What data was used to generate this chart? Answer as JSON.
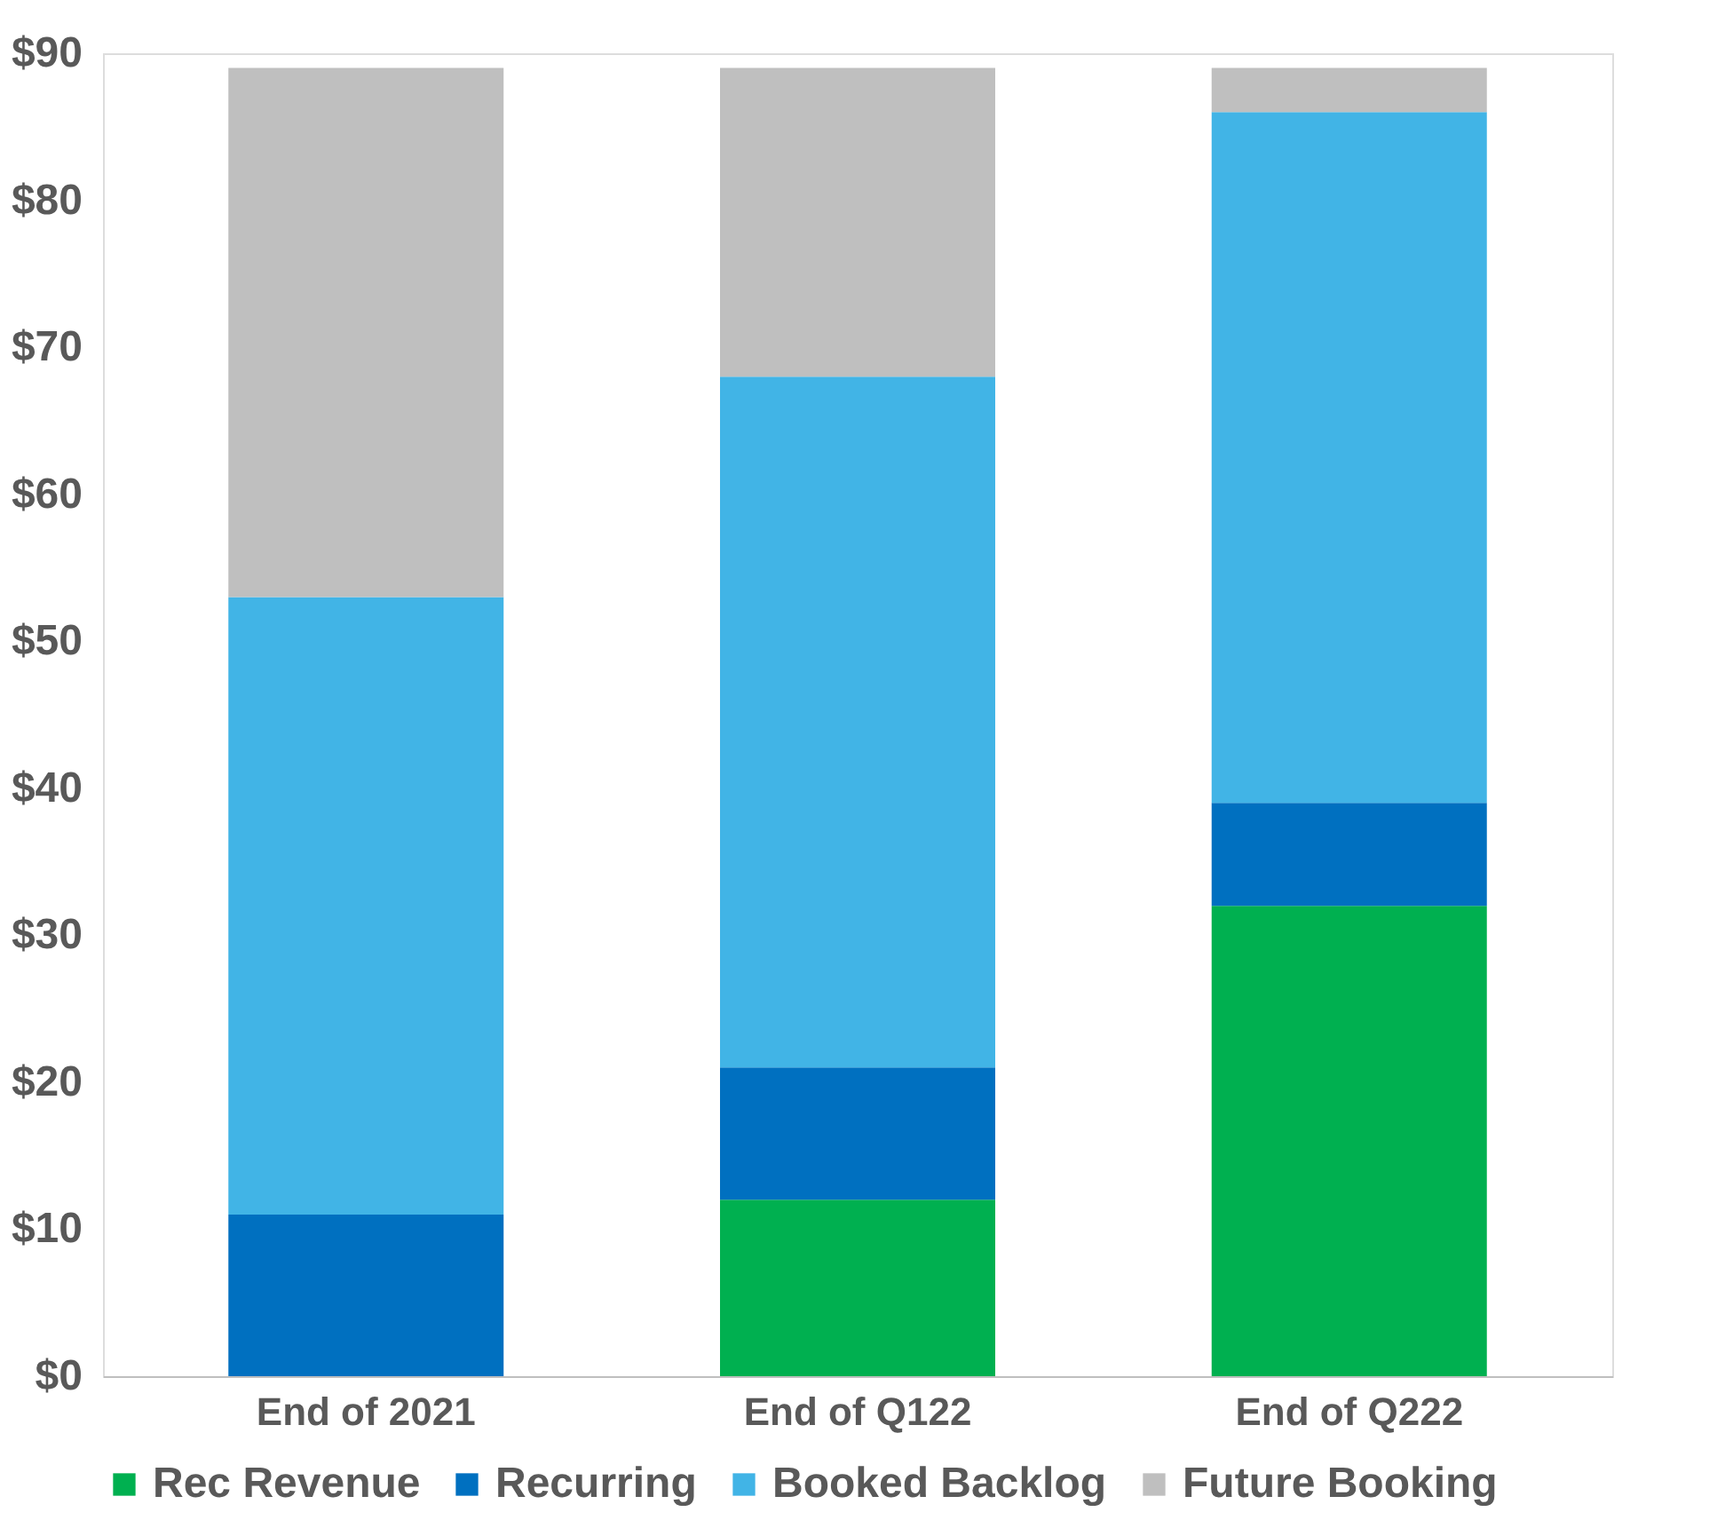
{
  "chart_data": {
    "type": "bar",
    "stacked": true,
    "categories": [
      "End of 2021",
      "End of Q122",
      "End of Q222"
    ],
    "series": [
      {
        "name": "Rec Revenue",
        "color": "#00b050",
        "values": [
          0,
          12,
          32
        ]
      },
      {
        "name": "Recurring",
        "color": "#0070c0",
        "values": [
          11,
          9,
          7
        ]
      },
      {
        "name": "Booked Backlog",
        "color": "#41b4e6",
        "values": [
          42,
          47,
          47
        ]
      },
      {
        "name": "Future Booking",
        "color": "#bfbfbf",
        "values": [
          36,
          21,
          3
        ]
      }
    ],
    "ylim": [
      0,
      90
    ],
    "yticks": [
      {
        "value": 0,
        "label": "$0"
      },
      {
        "value": 10,
        "label": "$10"
      },
      {
        "value": 20,
        "label": "$20"
      },
      {
        "value": 30,
        "label": "$30"
      },
      {
        "value": 40,
        "label": "$40"
      },
      {
        "value": 50,
        "label": "$50"
      },
      {
        "value": 60,
        "label": "$60"
      },
      {
        "value": 70,
        "label": "$70"
      },
      {
        "value": 80,
        "label": "$80"
      },
      {
        "value": 90,
        "label": "$90"
      }
    ],
    "grid": false,
    "legend": "bottom"
  }
}
